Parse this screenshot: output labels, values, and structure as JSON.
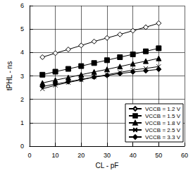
{
  "chart_data": {
    "type": "line",
    "x_label": "CL - pF",
    "y_label": "tPHL - ns",
    "x": [
      5,
      10,
      15,
      20,
      25,
      30,
      35,
      40,
      45,
      50
    ],
    "series": [
      {
        "name": "VCCB = 1.2 V",
        "color": "#000000",
        "marker": "diamond_open",
        "values": [
          3.8,
          3.97,
          4.13,
          4.3,
          4.47,
          4.62,
          4.77,
          4.93,
          5.08,
          5.25
        ]
      },
      {
        "name": "VCCB = 1.5 V",
        "color": "#000000",
        "marker": "square",
        "values": [
          3.05,
          3.18,
          3.3,
          3.42,
          3.55,
          3.67,
          3.8,
          3.92,
          4.05,
          4.18
        ]
      },
      {
        "name": "VCCB = 1.8 V",
        "color": "#000000",
        "marker": "triangle",
        "values": [
          2.7,
          2.82,
          2.93,
          3.05,
          3.17,
          3.28,
          3.4,
          3.52,
          3.63,
          3.75
        ]
      },
      {
        "name": "VCCB = 2.5 V",
        "color": "#000000",
        "marker": "x",
        "values": [
          2.45,
          2.6,
          2.72,
          2.83,
          2.95,
          3.05,
          3.15,
          3.25,
          3.32,
          3.4
        ]
      },
      {
        "name": "VCCB = 3.3 V",
        "color": "#000000",
        "marker": "diamond",
        "values": [
          2.55,
          2.65,
          2.75,
          2.85,
          2.95,
          3.02,
          3.1,
          3.17,
          3.22,
          3.28
        ]
      }
    ],
    "xlim": [
      0,
      60
    ],
    "xticks": [
      0,
      10,
      20,
      30,
      40,
      50,
      60
    ],
    "ylim": [
      0,
      6
    ],
    "yticks": [
      0,
      1,
      2,
      3,
      4,
      5,
      6
    ],
    "grid": true,
    "legend": "lower right"
  }
}
